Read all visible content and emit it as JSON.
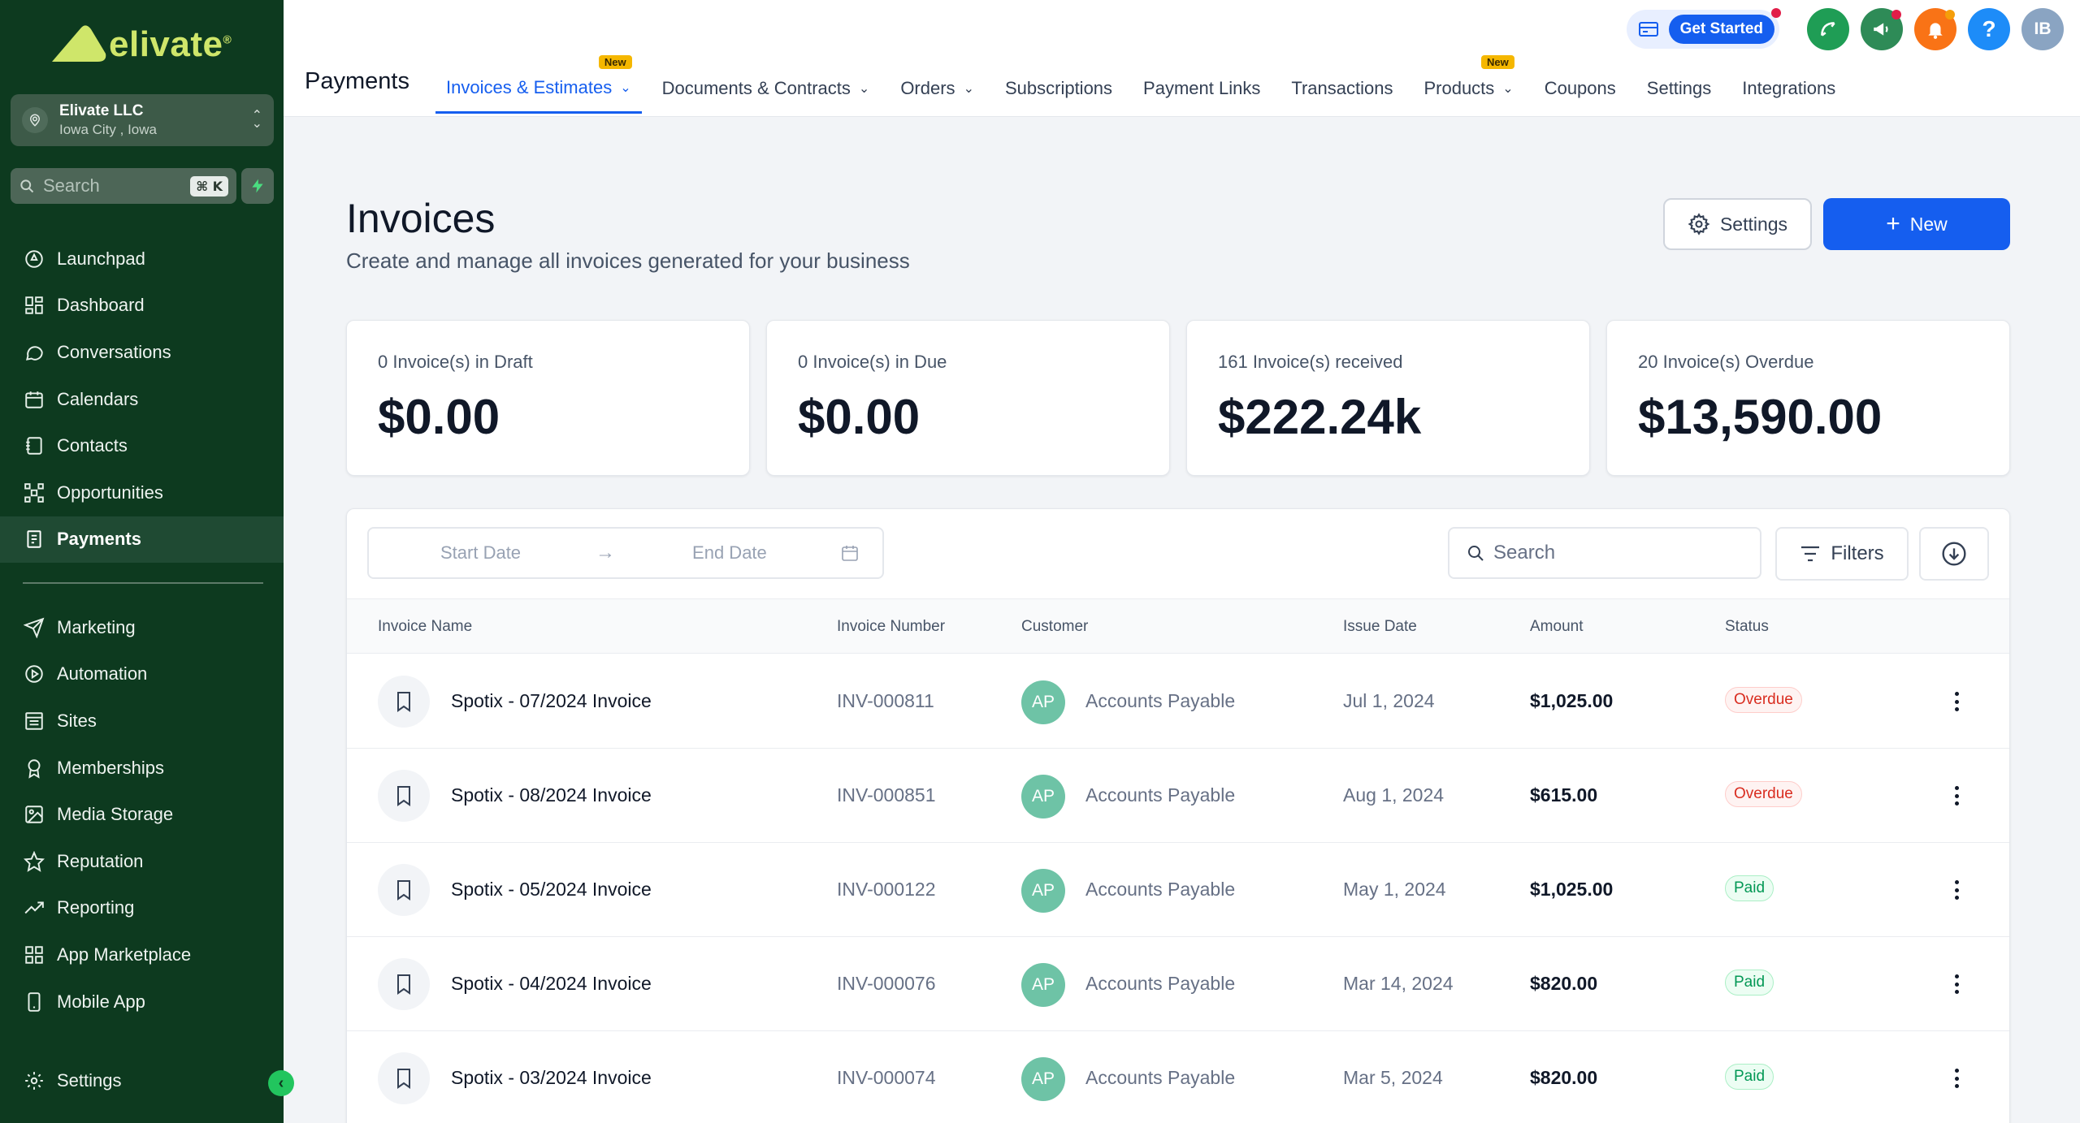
{
  "brand": {
    "name": "elivate",
    "mark": "®"
  },
  "account": {
    "name": "Elivate LLC",
    "location": "Iowa City , Iowa"
  },
  "sidebar_search": {
    "placeholder": "Search",
    "shortcut": "⌘ K"
  },
  "sidebar": {
    "items": [
      {
        "label": "Launchpad",
        "icon": "rocket-icon"
      },
      {
        "label": "Dashboard",
        "icon": "grid-icon"
      },
      {
        "label": "Conversations",
        "icon": "chat-icon"
      },
      {
        "label": "Calendars",
        "icon": "calendar-icon"
      },
      {
        "label": "Contacts",
        "icon": "contacts-icon"
      },
      {
        "label": "Opportunities",
        "icon": "network-icon"
      },
      {
        "label": "Payments",
        "icon": "receipt-icon",
        "active": true
      }
    ],
    "items2": [
      {
        "label": "Marketing",
        "icon": "send-icon"
      },
      {
        "label": "Automation",
        "icon": "automation-icon"
      },
      {
        "label": "Sites",
        "icon": "sites-icon"
      },
      {
        "label": "Memberships",
        "icon": "award-icon"
      },
      {
        "label": "Media Storage",
        "icon": "image-icon"
      },
      {
        "label": "Reputation",
        "icon": "star-icon"
      },
      {
        "label": "Reporting",
        "icon": "trend-icon"
      },
      {
        "label": "App Marketplace",
        "icon": "apps-icon"
      },
      {
        "label": "Mobile App",
        "icon": "phone-icon"
      }
    ],
    "settings_label": "Settings"
  },
  "topbar": {
    "page_label": "Payments",
    "get_started": "Get Started",
    "avatar": "IB",
    "tabs": [
      {
        "label": "Invoices & Estimates",
        "chevron": true,
        "badge": "New",
        "active": true
      },
      {
        "label": "Documents & Contracts",
        "chevron": true
      },
      {
        "label": "Orders",
        "chevron": true
      },
      {
        "label": "Subscriptions"
      },
      {
        "label": "Payment Links"
      },
      {
        "label": "Transactions"
      },
      {
        "label": "Products",
        "chevron": true,
        "badge": "New"
      },
      {
        "label": "Coupons"
      },
      {
        "label": "Settings"
      },
      {
        "label": "Integrations"
      }
    ]
  },
  "main": {
    "title": "Invoices",
    "subtitle": "Create and manage all invoices generated for your business",
    "settings_label": "Settings",
    "new_label": "New",
    "cards": [
      {
        "label": "0 Invoice(s) in Draft",
        "value": "$0.00"
      },
      {
        "label": "0 Invoice(s) in Due",
        "value": "$0.00"
      },
      {
        "label": "161 Invoice(s) received",
        "value": "$222.24k"
      },
      {
        "label": "20 Invoice(s) Overdue",
        "value": "$13,590.00"
      }
    ],
    "filters": {
      "start_date": "Start Date",
      "end_date": "End Date",
      "search_placeholder": "Search",
      "filters_label": "Filters"
    },
    "table": {
      "headers": {
        "name": "Invoice Name",
        "number": "Invoice Number",
        "customer": "Customer",
        "date": "Issue Date",
        "amount": "Amount",
        "status": "Status"
      },
      "rows": [
        {
          "name": "Spotix - 07/2024 Invoice",
          "number": "INV-000811",
          "avatar": "AP",
          "customer": "Accounts Payable",
          "date": "Jul 1, 2024",
          "amount": "$1,025.00",
          "status": "Overdue"
        },
        {
          "name": "Spotix - 08/2024 Invoice",
          "number": "INV-000851",
          "avatar": "AP",
          "customer": "Accounts Payable",
          "date": "Aug 1, 2024",
          "amount": "$615.00",
          "status": "Overdue"
        },
        {
          "name": "Spotix - 05/2024 Invoice",
          "number": "INV-000122",
          "avatar": "AP",
          "customer": "Accounts Payable",
          "date": "May 1, 2024",
          "amount": "$1,025.00",
          "status": "Paid"
        },
        {
          "name": "Spotix - 04/2024 Invoice",
          "number": "INV-000076",
          "avatar": "AP",
          "customer": "Accounts Payable",
          "date": "Mar 14, 2024",
          "amount": "$820.00",
          "status": "Paid"
        },
        {
          "name": "Spotix - 03/2024 Invoice",
          "number": "INV-000074",
          "avatar": "AP",
          "customer": "Accounts Payable",
          "date": "Mar 5, 2024",
          "amount": "$820.00",
          "status": "Paid"
        }
      ]
    }
  },
  "colors": {
    "sidebar_bg": "#0d3a1f",
    "accent": "#155eef",
    "brand_yellow": "#cfe66a"
  }
}
